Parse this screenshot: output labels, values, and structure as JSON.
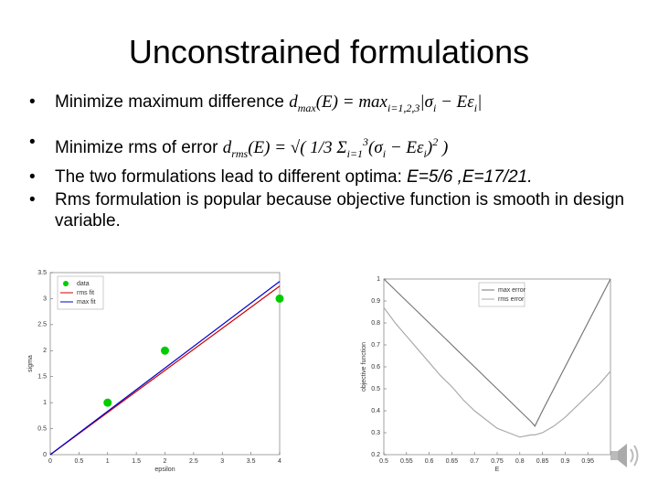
{
  "title": "Unconstrained formulations",
  "bullets": [
    [
      {
        "text": "Minimize maximum difference ",
        "style": "plain"
      },
      {
        "text": "d",
        "style": "math"
      },
      {
        "text": "max",
        "style": "sub"
      },
      {
        "text": "(E) = max",
        "style": "math"
      },
      {
        "text": "i=1,2,3",
        "style": "sub"
      },
      {
        "text": "|σ",
        "style": "math"
      },
      {
        "text": "i",
        "style": "sub"
      },
      {
        "text": " − Eε",
        "style": "math"
      },
      {
        "text": "i",
        "style": "sub"
      },
      {
        "text": "|",
        "style": "math"
      }
    ],
    [
      {
        "text": "Minimize rms of error ",
        "style": "plain"
      },
      {
        "text": "d",
        "style": "math"
      },
      {
        "text": "rms",
        "style": "sub"
      },
      {
        "text": "(E) = √( 1/3 Σ",
        "style": "math"
      },
      {
        "text": "i=1",
        "style": "sub"
      },
      {
        "text": "3",
        "style": "sup"
      },
      {
        "text": "(σ",
        "style": "math"
      },
      {
        "text": "i",
        "style": "sub"
      },
      {
        "text": " − Eε",
        "style": "math"
      },
      {
        "text": "i",
        "style": "sub"
      },
      {
        "text": ")",
        "style": "math"
      },
      {
        "text": "2",
        "style": "sup"
      },
      {
        "text": " )",
        "style": "math"
      }
    ],
    [
      {
        "text": "The two formulations lead to different optima: ",
        "style": "plain"
      },
      {
        "text": "E=5/6 ,E=17/21.",
        "style": "italic"
      }
    ],
    [
      {
        "text": "Rms formulation is popular because objective function is smooth in design variable.",
        "style": "plain"
      }
    ]
  ],
  "charts": [
    {
      "type": "line",
      "xlabel": "epsilon",
      "ylabel": "sigma",
      "xlim": [
        0,
        4
      ],
      "xticks": [
        0,
        0.5,
        1,
        1.5,
        2,
        2.5,
        3,
        3.5,
        4
      ],
      "ylim": [
        0,
        3.5
      ],
      "yticks": [
        0,
        0.5,
        1,
        1.5,
        2,
        2.5,
        3,
        3.5
      ],
      "legend": "top-left",
      "series": [
        {
          "name": "data",
          "type": "scatter",
          "color": "#00cc00",
          "x": [
            1,
            2,
            4
          ],
          "values": [
            1,
            2,
            3
          ]
        },
        {
          "name": "rms fit",
          "type": "line",
          "color": "#cc0000",
          "x": [
            0,
            4
          ],
          "values": [
            0,
            3.24
          ]
        },
        {
          "name": "max fit",
          "type": "line",
          "color": "#0000cc",
          "x": [
            0,
            4
          ],
          "values": [
            0,
            3.33
          ]
        }
      ]
    },
    {
      "type": "line",
      "xlabel": "E",
      "ylabel": "objective function",
      "xlim": [
        0.5,
        1
      ],
      "xticks": [
        0.5,
        0.55,
        0.6,
        0.65,
        0.7,
        0.75,
        0.8,
        0.85,
        0.9,
        0.95
      ],
      "ylim": [
        0.2,
        1
      ],
      "yticks": [
        0.2,
        0.3,
        0.4,
        0.5,
        0.6,
        0.7,
        0.8,
        0.9,
        1
      ],
      "legend": "top-center",
      "series": [
        {
          "name": "max error",
          "type": "line",
          "color": "#777777",
          "x": [
            0.5,
            0.525,
            0.55,
            0.575,
            0.6,
            0.625,
            0.65,
            0.675,
            0.7,
            0.725,
            0.75,
            0.775,
            0.8,
            0.825,
            0.8333,
            0.85,
            0.875,
            0.9,
            0.925,
            0.95,
            0.975,
            1
          ],
          "values": [
            1,
            0.95,
            0.9,
            0.85,
            0.8,
            0.75,
            0.7,
            0.65,
            0.6,
            0.55,
            0.5,
            0.45,
            0.4,
            0.35,
            0.33,
            0.4,
            0.5,
            0.6,
            0.7,
            0.8,
            0.9,
            1
          ]
        },
        {
          "name": "rms error",
          "type": "line",
          "color": "#aaaaaa",
          "x": [
            0.5,
            0.525,
            0.55,
            0.575,
            0.6,
            0.625,
            0.65,
            0.675,
            0.7,
            0.725,
            0.75,
            0.775,
            0.8,
            0.825,
            0.8333,
            0.85,
            0.875,
            0.9,
            0.925,
            0.95,
            0.975,
            1
          ],
          "values": [
            0.87,
            0.8,
            0.74,
            0.68,
            0.62,
            0.56,
            0.51,
            0.45,
            0.4,
            0.36,
            0.32,
            0.3,
            0.28,
            0.29,
            0.29,
            0.3,
            0.33,
            0.37,
            0.42,
            0.47,
            0.52,
            0.58
          ]
        }
      ]
    }
  ]
}
